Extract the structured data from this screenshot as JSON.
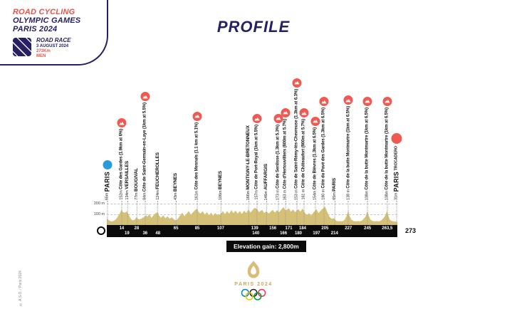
{
  "header": {
    "line1": "ROAD CYCLING",
    "line2": "OLYMPIC GAMES",
    "line3": "PARIS 2024",
    "event": "ROAD RACE",
    "date": "3 AUGUST 2024",
    "distance": "273Km",
    "category": "MEN"
  },
  "title": "PROFILE",
  "elevation_gain_label": "Elevation gain: 2,800m",
  "axis": {
    "end_label": "273",
    "y_labels": {
      "m200": "200 m",
      "m100": "100 m"
    }
  },
  "footer": {
    "logo_text": "PARIS 2024",
    "copyright": "© A.S.O. / Paris 2024"
  },
  "colors": {
    "navy": "#272064",
    "red": "#E8524A",
    "climb_red": "#EE5A52",
    "start_blue": "#2A9BD8",
    "profile_gold": "#D5C078",
    "axis_black": "#0b0b0b",
    "logo_gold": "#D9BD77"
  },
  "chart_data": {
    "type": "area",
    "title": "PROFILE",
    "xlabel": "distance (km)",
    "ylabel": "elevation (m)",
    "xlim": [
      0,
      273
    ],
    "ylim": [
      0,
      250
    ],
    "total_distance_km": 273,
    "elevation_gain_m": 2800,
    "gridlines_m": [
      100,
      200
    ],
    "ticks": [
      {
        "label": "14",
        "km": 14,
        "row": 1
      },
      {
        "label": "19",
        "km": 19,
        "row": 2
      },
      {
        "label": "28",
        "km": 28,
        "row": 1
      },
      {
        "label": "36",
        "km": 36,
        "row": 2
      },
      {
        "label": "48",
        "km": 48,
        "row": 2
      },
      {
        "label": "65",
        "km": 65,
        "row": 1
      },
      {
        "label": "85",
        "km": 85,
        "row": 1
      },
      {
        "label": "107",
        "km": 107,
        "row": 1
      },
      {
        "label": "139",
        "km": 139,
        "row": 1
      },
      {
        "label": "140",
        "km": 140,
        "row": 2
      },
      {
        "label": "156",
        "km": 156,
        "row": 1
      },
      {
        "label": "166",
        "km": 166,
        "row": 2
      },
      {
        "label": "171",
        "km": 171,
        "row": 1
      },
      {
        "label": "180",
        "km": 180,
        "row": 2
      },
      {
        "label": "184",
        "km": 184,
        "row": 1
      },
      {
        "label": "197",
        "km": 197,
        "row": 2
      },
      {
        "label": "205",
        "km": 205,
        "row": 1
      },
      {
        "label": "214",
        "km": 214,
        "row": 2
      },
      {
        "label": "227",
        "km": 227,
        "row": 1
      },
      {
        "label": "245",
        "km": 245,
        "row": 1
      },
      {
        "label": "263,5",
        "km": 263.5,
        "row": 1
      }
    ],
    "waypoints": [
      {
        "pos": 1,
        "elev": "65m",
        "name": "PARIS",
        "type": "start"
      },
      {
        "pos": 14,
        "elev": "152m",
        "name": "Côte des Gardes (1.9km at 6%)",
        "type": "climb"
      },
      {
        "pos": 19.5,
        "elev": "134m",
        "name": "VERSAILLES",
        "type": "city"
      },
      {
        "pos": 28,
        "elev": "77m",
        "name": "BOUGIVAL",
        "type": "city"
      },
      {
        "pos": 36,
        "elev": "84m",
        "name": "Côte de Saint-Germain-en-Laye (1km at 5.5%)",
        "type": "climb"
      },
      {
        "pos": 48,
        "elev": "124m",
        "name": "FEUCHEROLLES",
        "type": "city"
      },
      {
        "pos": 65,
        "elev": "43m",
        "name": "BEYNES",
        "type": "city"
      },
      {
        "pos": 85,
        "elev": "161m",
        "name": "Côte des Mesnuls (1.1 km at 5.1%)",
        "type": "climb"
      },
      {
        "pos": 107,
        "elev": "106m",
        "name": "BEYNES",
        "type": "city"
      },
      {
        "pos": 133,
        "elev": "166m",
        "name": "MONTIGNY-LE-BRETONNEUX",
        "type": "city"
      },
      {
        "pos": 141,
        "elev": "157m",
        "name": "Côte de Port-Royal (1km at 5.5%)",
        "type": "climb"
      },
      {
        "pos": 150,
        "elev": "146m",
        "name": "AUFFARGIS",
        "type": "city"
      },
      {
        "pos": 161,
        "elev": "173 m",
        "name": "Côte de Senlisse (1.3km at 5.3%)",
        "type": "climb"
      },
      {
        "pos": 168,
        "elev": "163 m",
        "name": "Côte d'Hertouvilliers (800m at 5.7%)",
        "type": "climb"
      },
      {
        "pos": 178.5,
        "elev": "153 m",
        "name": "Côte de Saint-Rémy-lès-Chevreuse (1.3km at 6.3%)",
        "type": "climb"
      },
      {
        "pos": 185.5,
        "elev": "161 m",
        "name": "Côte de Châteaufort (900m at 5.7%)",
        "type": "climb"
      },
      {
        "pos": 196,
        "elev": "154m",
        "name": "Côte de Bièvres (1.3km at 6.5%)",
        "type": "climb"
      },
      {
        "pos": 204,
        "elev": "180 m",
        "name": "Côte du Pavé des Gardes (1.3km at 6.5%)",
        "type": "climb"
      },
      {
        "pos": 214,
        "elev": "65m",
        "name": "PARIS",
        "type": "city"
      },
      {
        "pos": 227,
        "elev": "138 m",
        "name": "Côte de la butte Montmartre (1km at 6.5%)",
        "type": "climb"
      },
      {
        "pos": 245,
        "elev": "138m",
        "name": "Côte de la butte Montmartre (1km at 6.5%)",
        "type": "climb"
      },
      {
        "pos": 263.5,
        "elev": "138m",
        "name": "Côte de la butte Montmartre (1km at 6.5%)",
        "type": "climb"
      },
      {
        "pos": 272,
        "elev": "31m",
        "name": "PARIS",
        "suffix": "TROCADERO",
        "type": "finish"
      }
    ],
    "profile": [
      [
        0,
        65
      ],
      [
        2,
        45
      ],
      [
        4,
        35
      ],
      [
        6,
        38
      ],
      [
        8,
        50
      ],
      [
        10,
        75
      ],
      [
        12,
        110
      ],
      [
        14,
        152
      ],
      [
        15,
        125
      ],
      [
        17,
        120
      ],
      [
        19,
        134
      ],
      [
        20,
        110
      ],
      [
        22,
        70
      ],
      [
        24,
        45
      ],
      [
        26,
        50
      ],
      [
        28,
        77
      ],
      [
        29,
        60
      ],
      [
        31,
        55
      ],
      [
        33,
        65
      ],
      [
        36,
        84
      ],
      [
        37,
        95
      ],
      [
        38,
        80
      ],
      [
        40,
        105
      ],
      [
        42,
        70
      ],
      [
        44,
        95
      ],
      [
        46,
        115
      ],
      [
        48,
        124
      ],
      [
        49,
        95
      ],
      [
        51,
        70
      ],
      [
        53,
        95
      ],
      [
        55,
        65
      ],
      [
        57,
        85
      ],
      [
        59,
        60
      ],
      [
        61,
        75
      ],
      [
        63,
        55
      ],
      [
        65,
        43
      ],
      [
        67,
        65
      ],
      [
        69,
        95
      ],
      [
        71,
        120
      ],
      [
        73,
        85
      ],
      [
        75,
        110
      ],
      [
        77,
        135
      ],
      [
        79,
        100
      ],
      [
        81,
        125
      ],
      [
        83,
        145
      ],
      [
        85,
        161
      ],
      [
        86,
        130
      ],
      [
        88,
        110
      ],
      [
        90,
        135
      ],
      [
        92,
        100
      ],
      [
        94,
        125
      ],
      [
        96,
        95
      ],
      [
        98,
        120
      ],
      [
        100,
        90
      ],
      [
        102,
        115
      ],
      [
        104,
        95
      ],
      [
        107,
        106
      ],
      [
        109,
        135
      ],
      [
        111,
        105
      ],
      [
        113,
        135
      ],
      [
        115,
        110
      ],
      [
        117,
        145
      ],
      [
        119,
        115
      ],
      [
        121,
        140
      ],
      [
        123,
        110
      ],
      [
        125,
        135
      ],
      [
        127,
        105
      ],
      [
        129,
        140
      ],
      [
        131,
        115
      ],
      [
        133,
        150
      ],
      [
        135,
        120
      ],
      [
        137,
        145
      ],
      [
        139,
        166
      ],
      [
        141,
        157
      ],
      [
        143,
        125
      ],
      [
        146,
        146
      ],
      [
        148,
        115
      ],
      [
        150,
        135
      ],
      [
        152,
        110
      ],
      [
        154,
        130
      ],
      [
        156,
        146
      ],
      [
        158,
        120
      ],
      [
        160,
        145
      ],
      [
        162,
        125
      ],
      [
        164,
        150
      ],
      [
        166,
        173
      ],
      [
        168,
        140
      ],
      [
        171,
        163
      ],
      [
        173,
        130
      ],
      [
        175,
        150
      ],
      [
        177,
        125
      ],
      [
        180,
        153
      ],
      [
        182,
        128
      ],
      [
        184,
        161
      ],
      [
        186,
        120
      ],
      [
        188,
        95
      ],
      [
        190,
        115
      ],
      [
        192,
        90
      ],
      [
        194,
        120
      ],
      [
        197,
        154
      ],
      [
        199,
        115
      ],
      [
        201,
        140
      ],
      [
        205,
        180
      ],
      [
        207,
        130
      ],
      [
        209,
        85
      ],
      [
        211,
        60
      ],
      [
        214,
        65
      ],
      [
        215,
        45
      ],
      [
        217,
        35
      ],
      [
        219,
        38
      ],
      [
        221,
        35
      ],
      [
        223,
        45
      ],
      [
        225,
        80
      ],
      [
        227,
        138
      ],
      [
        228,
        90
      ],
      [
        230,
        50
      ],
      [
        232,
        38
      ],
      [
        234,
        35
      ],
      [
        236,
        38
      ],
      [
        238,
        35
      ],
      [
        240,
        45
      ],
      [
        243,
        80
      ],
      [
        245,
        138
      ],
      [
        246,
        90
      ],
      [
        248,
        50
      ],
      [
        250,
        38
      ],
      [
        252,
        35
      ],
      [
        254,
        38
      ],
      [
        256,
        35
      ],
      [
        258,
        45
      ],
      [
        261,
        80
      ],
      [
        263.5,
        138
      ],
      [
        264.5,
        90
      ],
      [
        266,
        50
      ],
      [
        268,
        38
      ],
      [
        270,
        35
      ],
      [
        272,
        32
      ],
      [
        273,
        31
      ]
    ]
  }
}
